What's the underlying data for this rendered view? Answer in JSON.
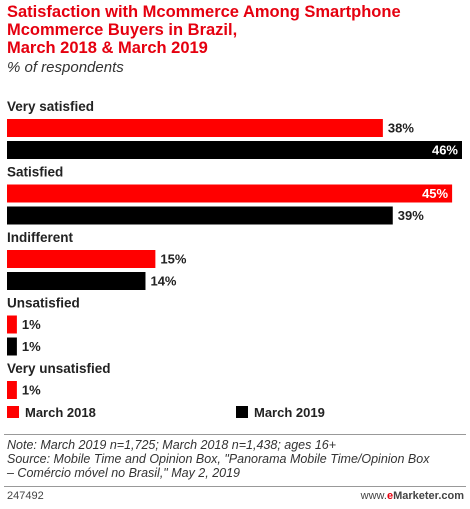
{
  "chart_data": {
    "type": "bar",
    "orientation": "horizontal",
    "title": "Satisfaction with Mcommerce Among Smartphone Mcommerce Buyers in Brazil, March 2018 & March 2019",
    "title_lines": [
      "Satisfaction with Mcommerce Among Smartphone",
      "Mcommerce Buyers in Brazil,",
      "March 2018 & March 2019"
    ],
    "subtitle": "% of respondents",
    "categories": [
      "Very satisfied",
      "Satisfied",
      "Indifferent",
      "Unsatisfied",
      "Very unsatisfied"
    ],
    "series": [
      {
        "name": "March 2018",
        "color": "#ff0000",
        "values": [
          38,
          45,
          15,
          1,
          1
        ]
      },
      {
        "name": "March 2019",
        "color": "#000000",
        "values": [
          46,
          39,
          14,
          1,
          null
        ]
      }
    ],
    "value_suffix": "%",
    "xlim": [
      0,
      46
    ],
    "grid": false,
    "legend_position": "bottom-left"
  },
  "footnote": {
    "note": "Note: March 2019 n=1,725; March 2018 n=1,438; ages 16+",
    "source_line1": "Source: Mobile Time and Opinion Box, \"Panorama Mobile Time/Opinion Box",
    "source_line2": "– Comércio móvel no Brasil,\" May 2, 2019"
  },
  "footer": {
    "chart_id": "247492",
    "brand_prefix": "www.",
    "brand_em": "e",
    "brand_suffix": "Marketer.com"
  }
}
